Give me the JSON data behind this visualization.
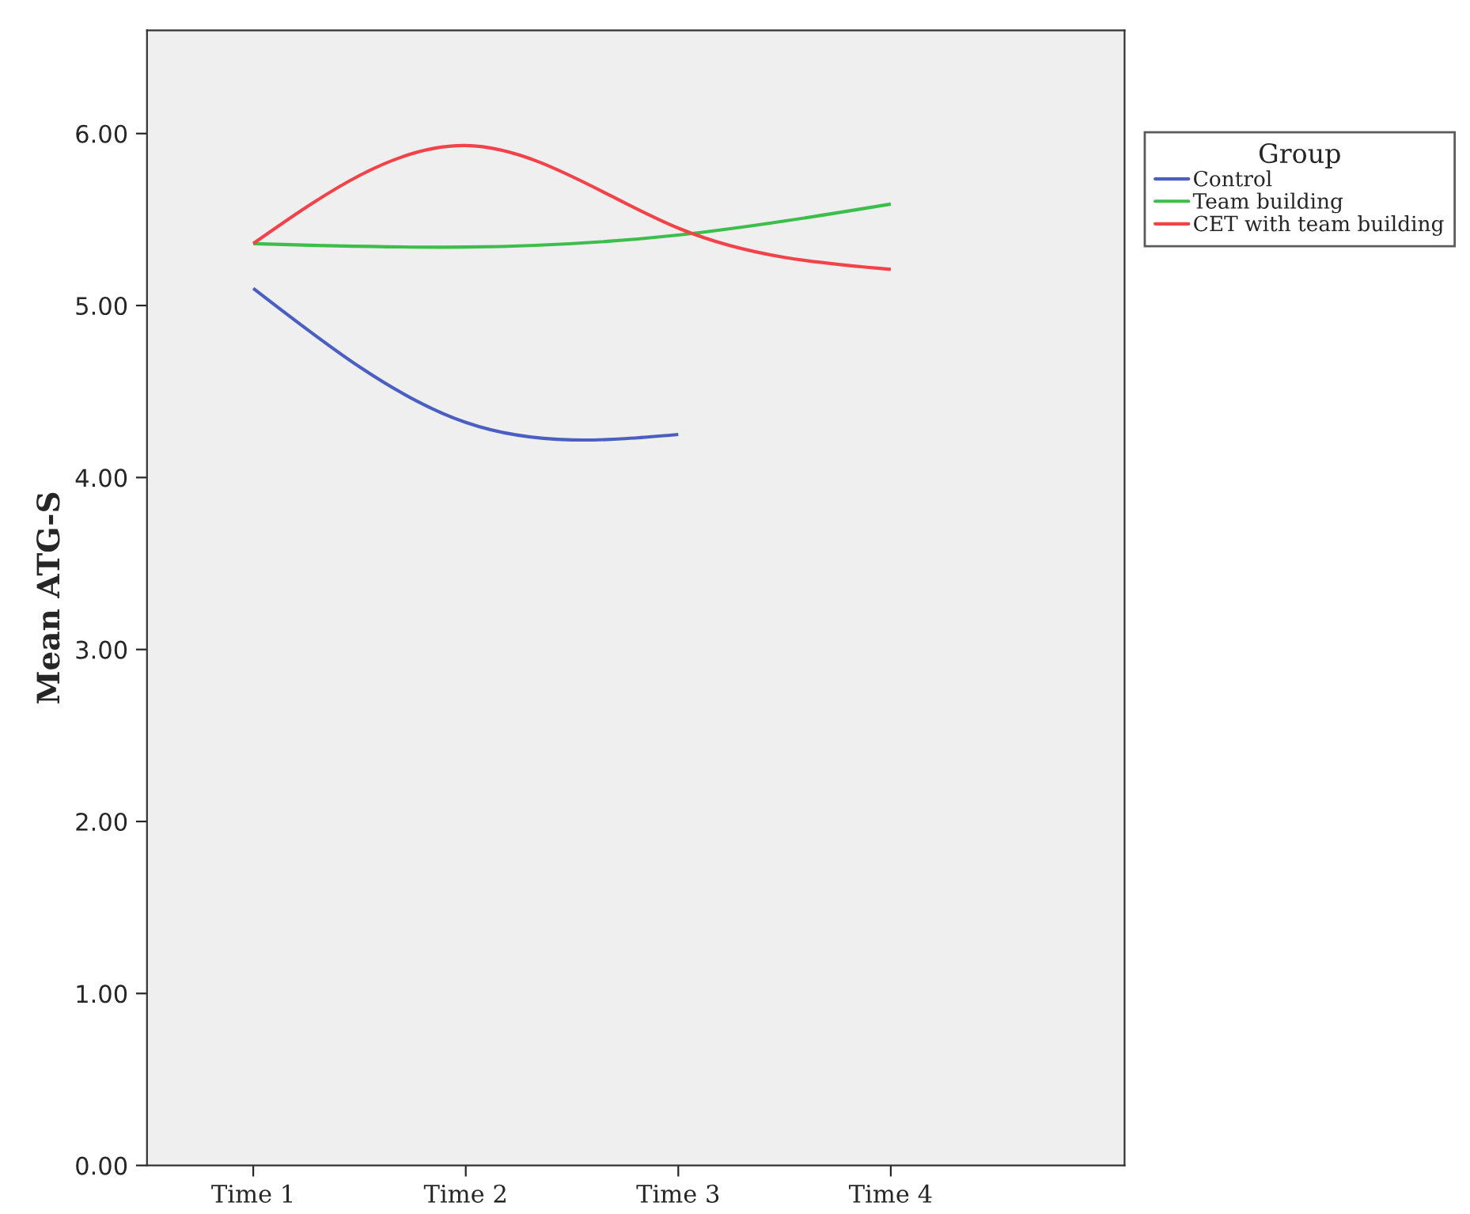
{
  "chart_data": {
    "type": "line",
    "ylabel": "Mean ATG-S",
    "legend_title": "Group",
    "categories": [
      "Time 1",
      "Time 2",
      "Time 3",
      "Time 4"
    ],
    "series": [
      {
        "name": "Control",
        "color": "#4a5fc1",
        "values": [
          5.1,
          4.32,
          4.25,
          null
        ]
      },
      {
        "name": "Team building",
        "color": "#3cbf4a",
        "values": [
          5.36,
          5.34,
          5.41,
          5.59
        ]
      },
      {
        "name": "CET with team building",
        "color": "#f2434a",
        "values": [
          5.36,
          5.93,
          5.45,
          5.21
        ]
      }
    ],
    "ylim": [
      0,
      6.6
    ],
    "yticks": [
      {
        "value": 0,
        "label": "0.00"
      },
      {
        "value": 1,
        "label": "1.00"
      },
      {
        "value": 2,
        "label": "2.00"
      },
      {
        "value": 3,
        "label": "3.00"
      },
      {
        "value": 4,
        "label": "4.00"
      },
      {
        "value": 5,
        "label": "5.00"
      },
      {
        "value": 6,
        "label": "6.00"
      }
    ],
    "legend": "right",
    "grid": false,
    "marker": "none",
    "line_style": "solid"
  }
}
